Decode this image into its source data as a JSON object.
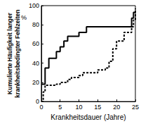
{
  "chart_data": {
    "type": "line",
    "x_label": "Krankheitsdauer (Jahre)",
    "y_label": "Kumulierte Häufigkeit langer\nkrankheitsbedingter Fehlzeiten",
    "y_unit": "%",
    "xlim": [
      0,
      25
    ],
    "xticks": [
      0,
      5,
      10,
      15,
      20,
      25
    ],
    "ylim": [
      0,
      100
    ],
    "yticks": [
      0,
      20,
      40,
      60,
      80,
      100
    ],
    "grid": false,
    "series": [
      {
        "color": "#000000",
        "line_style": "solid",
        "x": [
          0,
          1,
          2,
          4,
          5,
          6,
          7,
          10,
          12,
          24,
          24.5,
          25
        ],
        "values": [
          18,
          35,
          45,
          52,
          57,
          63,
          68,
          72,
          78,
          87,
          93,
          93
        ]
      },
      {
        "color": "#000000",
        "line_style": "dashed",
        "x": [
          0,
          0.5,
          1,
          4,
          5,
          7,
          8,
          10,
          11,
          15,
          17,
          18,
          19,
          20,
          22,
          24,
          24.5,
          25
        ],
        "values": [
          0,
          10,
          17,
          18,
          20,
          23,
          25,
          27,
          30,
          33,
          35,
          42,
          55,
          63,
          72,
          78,
          85,
          97
        ]
      }
    ]
  }
}
